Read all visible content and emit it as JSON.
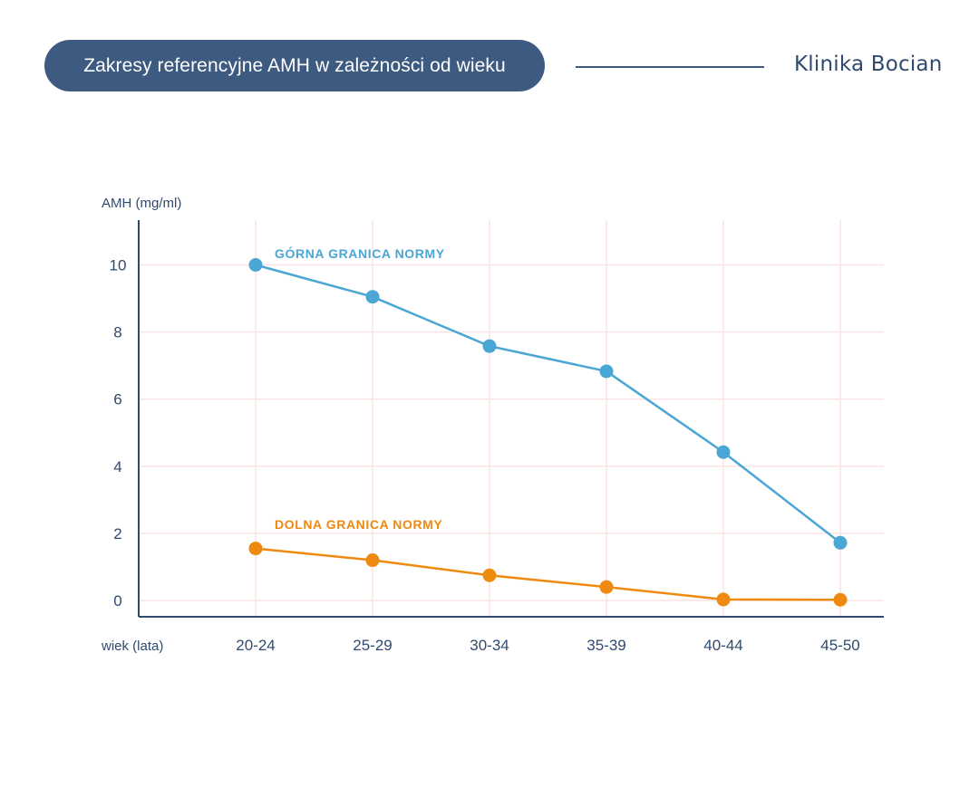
{
  "header": {
    "title": "Zakresy referencyjne AMH w zależności od wieku",
    "brand": "Klinika Bocian",
    "colors": {
      "pill": "#3d5a80",
      "text": "#ffffff",
      "brand": "#2f4a6e"
    }
  },
  "chart_data": {
    "type": "line",
    "ylabel": "AMH (mg/ml)",
    "xlabel": "wiek (lata)",
    "categories": [
      "20-24",
      "25-29",
      "30-34",
      "35-39",
      "40-44",
      "45-50"
    ],
    "yticks": [
      0,
      2,
      4,
      6,
      8,
      10
    ],
    "ylim": [
      -0.4,
      11.3
    ],
    "grid": true,
    "series": [
      {
        "name": "GÓRNA GRANICA NORMY",
        "color": "#4aa6d4",
        "values": [
          10.0,
          9.05,
          7.58,
          6.83,
          4.42,
          1.72
        ]
      },
      {
        "name": "DOLNA GRANICA NORMY",
        "color": "#ee8a10",
        "values": [
          1.55,
          1.2,
          0.75,
          0.4,
          0.03,
          0.02
        ]
      }
    ]
  }
}
